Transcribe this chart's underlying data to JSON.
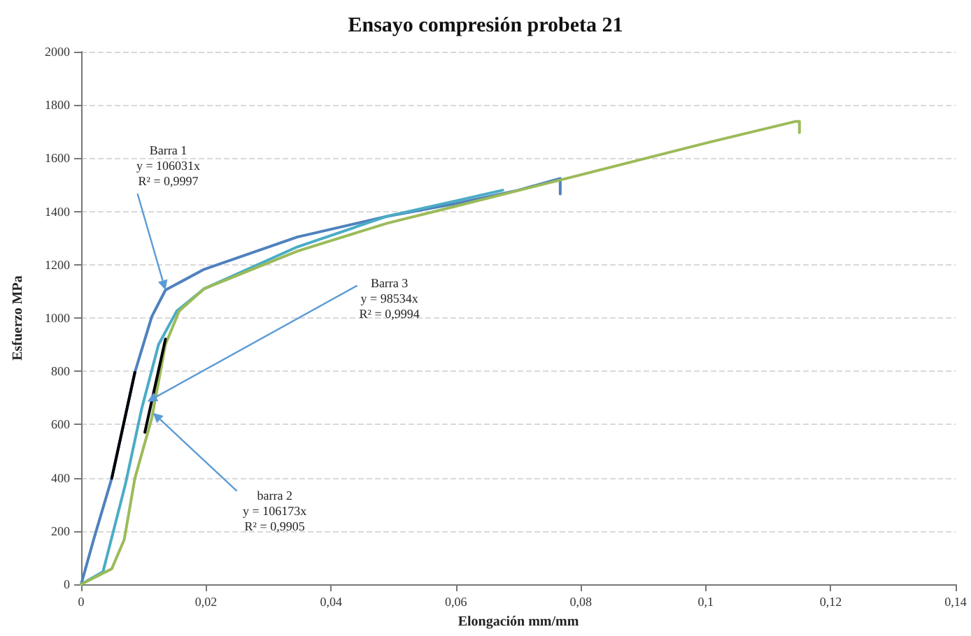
{
  "chart_data": {
    "type": "line",
    "title": "Ensayo compresión probeta 21",
    "xlabel": "Elongación mm/mm",
    "ylabel": "Esfuerzo MPa",
    "grid": "y",
    "marker": "none",
    "line_style": "solid",
    "xlim": [
      0,
      0.14
    ],
    "xticks": [
      0,
      {
        "value": 0.02,
        "label": "0,02"
      },
      {
        "value": 0.04,
        "label": "0,04"
      },
      {
        "value": 0.06,
        "label": "0,06"
      },
      {
        "value": 0.08,
        "label": "0,08"
      },
      {
        "value": 0.1,
        "label": "0,1"
      },
      {
        "value": 0.12,
        "label": "0,12"
      },
      {
        "value": 0.14,
        "label": "0,14"
      }
    ],
    "ylim": [
      0,
      2000
    ],
    "yticks": [
      0,
      200,
      400,
      600,
      800,
      1000,
      1200,
      1400,
      1600,
      1800,
      2000
    ],
    "series": [
      {
        "color": "#4f81bd",
        "x": [
          0,
          0.002,
          0.0049,
          0.0086,
          0.0113,
          0.0135,
          0.0197,
          0.0346,
          0.049,
          0.06,
          0.07,
          0.0767,
          0.0767
        ],
        "values": [
          0,
          168,
          398,
          796,
          1005,
          1105,
          1183,
          1304,
          1382,
          1430,
          1480,
          1524,
          1466
        ]
      },
      {
        "color": "#4bacc6",
        "x": [
          0,
          0.0035,
          0.0071,
          0.0097,
          0.0124,
          0.0153,
          0.0197,
          0.0346,
          0.049,
          0.06,
          0.0675
        ],
        "values": [
          0,
          47,
          377,
          660,
          901,
          1026,
          1110,
          1267,
          1382,
          1440,
          1480
        ]
      },
      {
        "color": "#9bbb59",
        "x": [
          0,
          0.0049,
          0.0069,
          0.0086,
          0.0113,
          0.0135,
          0.0157,
          0.0197,
          0.0346,
          0.049,
          0.06,
          0.077,
          0.0995,
          0.1143,
          0.115,
          0.115
        ],
        "values": [
          0,
          58,
          168,
          398,
          623,
          901,
          1026,
          1110,
          1251,
          1356,
          1420,
          1520,
          1654,
          1738,
          1738,
          1696
        ]
      },
      {
        "color": "#000000",
        "x": [
          0.0049,
          0.0086
        ],
        "values": [
          398,
          796
        ]
      },
      {
        "color": "#000000",
        "x": [
          0.0102,
          0.0135
        ],
        "values": [
          571,
          921
        ]
      }
    ],
    "annotations": [
      {
        "text": "Barra 1\ny = 106031x\nR² = 0,9997",
        "x": 0.0135,
        "y": 1105
      },
      {
        "text": "Barra 3\ny = 98534x\nR² = 0,9994",
        "x": 0.0106,
        "y": 686
      },
      {
        "text": "barra 2\ny = 106173x\nR² = 0,9905",
        "x": 0.0115,
        "y": 644
      }
    ]
  }
}
